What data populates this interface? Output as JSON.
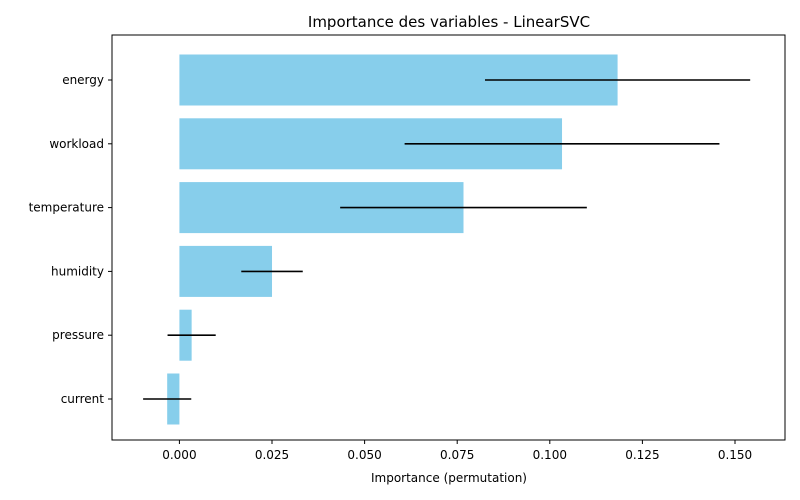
{
  "chart_data": {
    "type": "bar",
    "orientation": "horizontal",
    "title": "Importance des variables - LinearSVC",
    "xlabel": "Importance (permutation)",
    "ylabel": "",
    "categories": [
      "energy",
      "workload",
      "temperature",
      "humidity",
      "pressure",
      "current"
    ],
    "values": [
      0.1183,
      0.1033,
      0.0767,
      0.025,
      0.0033,
      -0.0033
    ],
    "errors": [
      0.0358,
      0.0425,
      0.0333,
      0.0083,
      0.0065,
      0.0065
    ],
    "xlim": [
      -0.0182,
      0.1635
    ],
    "xticks": [
      0.0,
      0.025,
      0.05,
      0.075,
      0.1,
      0.125,
      0.15
    ],
    "xtick_labels": [
      "0.000",
      "0.025",
      "0.050",
      "0.075",
      "0.100",
      "0.125",
      "0.150"
    ],
    "bar_color": "#87ceeb",
    "error_color": "#000000",
    "grid": false,
    "legend": "none"
  }
}
